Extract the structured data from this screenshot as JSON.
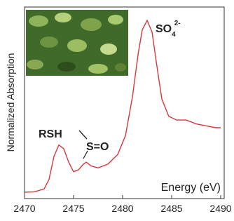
{
  "chart_data": {
    "type": "line",
    "y_label": "Normalized Absorption",
    "x_label": "Energy (eV)",
    "annotations": {
      "rsh": "RSH",
      "sulfoxide": "S=O",
      "sulfate": {
        "text": "SO",
        "subscript": "4",
        "superscript": "2-"
      }
    },
    "x": [
      2470,
      2471,
      2472,
      2472.5,
      2473,
      2473.5,
      2474,
      2474.5,
      2475,
      2475.5,
      2476,
      2476.3,
      2476.8,
      2477.5,
      2478.5,
      2479.5,
      2480.3,
      2481,
      2481.6,
      2482,
      2482.5,
      2483,
      2483.5,
      2484,
      2484.7,
      2485.5,
      2486.5,
      2487.5,
      2488.5,
      2489.5,
      2490
    ],
    "series": [
      {
        "color": "#d9363e",
        "values": [
          0.033,
          0.035,
          0.05,
          0.1,
          0.22,
          0.28,
          0.26,
          0.19,
          0.14,
          0.15,
          0.18,
          0.19,
          0.17,
          0.16,
          0.18,
          0.23,
          0.33,
          0.53,
          0.76,
          0.88,
          0.93,
          0.87,
          0.69,
          0.52,
          0.43,
          0.41,
          0.41,
          0.39,
          0.38,
          0.37,
          0.37
        ]
      }
    ],
    "xlim": [
      2470,
      2490
    ],
    "xticks": [
      2470,
      2475,
      2480,
      2485,
      2490
    ],
    "ylim": [
      0,
      1
    ]
  }
}
